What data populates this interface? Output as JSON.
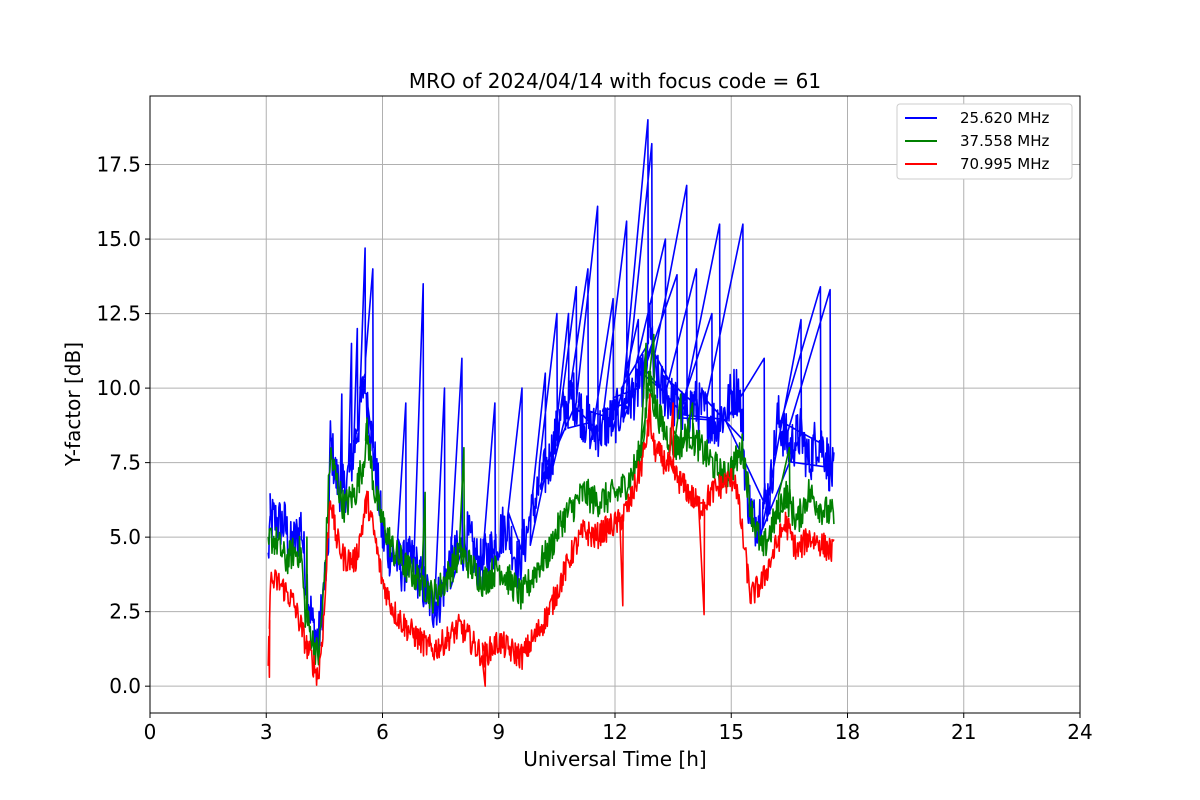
{
  "chart_data": {
    "type": "line",
    "title": "MRO of 2024/04/14 with focus code = 61",
    "xlabel": "Universal Time [h]",
    "ylabel": "Y-factor [dB]",
    "xlim": [
      0,
      24
    ],
    "ylim": [
      -0.9,
      19.8
    ],
    "xticks": [
      0,
      3,
      6,
      9,
      12,
      15,
      18,
      21,
      24
    ],
    "yticks": [
      0.0,
      2.5,
      5.0,
      7.5,
      10.0,
      12.5,
      15.0,
      17.5
    ],
    "xtick_labels": [
      "0",
      "3",
      "6",
      "9",
      "12",
      "15",
      "18",
      "21",
      "24"
    ],
    "ytick_labels": [
      "0.0",
      "2.5",
      "5.0",
      "7.5",
      "10.0",
      "12.5",
      "15.0",
      "17.5"
    ],
    "grid": true,
    "legend_position": "top-right",
    "series": [
      {
        "name": "25.620 MHz",
        "color": "#0000ff",
        "x": [
          3.05,
          3.1,
          3.3,
          3.5,
          3.6,
          3.8,
          3.9,
          4.0,
          4.2,
          4.35,
          4.5,
          4.6,
          4.65,
          4.8,
          5.0,
          5.2,
          5.4,
          5.55,
          5.7,
          5.9,
          6.0,
          6.2,
          6.5,
          6.8,
          7.0,
          7.3,
          7.5,
          7.7,
          8.0,
          8.2,
          8.5,
          8.8,
          9.0,
          9.2,
          9.5,
          9.8,
          10.0,
          10.3,
          10.6,
          10.9,
          11.2,
          11.5,
          11.8,
          12.0,
          12.3,
          12.6,
          12.8,
          12.9,
          13.0,
          13.2,
          13.5,
          13.8,
          14.0,
          14.3,
          14.6,
          14.9,
          15.0,
          15.2,
          15.4,
          15.6,
          15.8,
          16.0,
          16.2,
          16.5,
          16.8,
          17.0,
          17.2,
          17.4,
          17.5,
          17.65
        ],
        "y": [
          4.2,
          5.6,
          5.5,
          5.4,
          4.6,
          5.0,
          5.5,
          4.0,
          2.0,
          1.5,
          3.5,
          4.5,
          8.3,
          7.0,
          6.5,
          7.5,
          9.0,
          10.5,
          8.5,
          6.5,
          5.0,
          4.5,
          4.0,
          4.2,
          3.5,
          2.7,
          3.0,
          4.0,
          4.5,
          5.0,
          4.0,
          4.5,
          5.0,
          5.5,
          4.0,
          5.5,
          6.5,
          7.5,
          9.0,
          9.8,
          9.0,
          8.5,
          8.8,
          9.0,
          9.5,
          10.0,
          10.5,
          12.5,
          10.5,
          10.0,
          9.5,
          9.0,
          9.5,
          9.2,
          8.8,
          9.3,
          9.8,
          10.0,
          6.5,
          5.5,
          6.0,
          6.5,
          9.0,
          8.0,
          8.5,
          7.5,
          8.3,
          8.0,
          7.5,
          7.0
        ],
        "spikes": [
          [
            3.1,
            5.7
          ],
          [
            4.95,
            9.8
          ],
          [
            5.2,
            11.5
          ],
          [
            5.35,
            12.0
          ],
          [
            5.55,
            14.7
          ],
          [
            5.75,
            14.0
          ],
          [
            6.6,
            9.5
          ],
          [
            7.05,
            13.5
          ],
          [
            7.6,
            10.0
          ],
          [
            8.05,
            11.0
          ],
          [
            8.9,
            9.5
          ],
          [
            9.6,
            10.0
          ],
          [
            10.2,
            10.5
          ],
          [
            10.5,
            12.5
          ],
          [
            10.8,
            12.5
          ],
          [
            11.0,
            13.4
          ],
          [
            11.3,
            14.0
          ],
          [
            11.55,
            16.1
          ],
          [
            11.95,
            13.0
          ],
          [
            12.3,
            15.6
          ],
          [
            12.6,
            12.3
          ],
          [
            12.85,
            19.0
          ],
          [
            12.95,
            18.2
          ],
          [
            13.3,
            15.0
          ],
          [
            13.6,
            13.8
          ],
          [
            13.85,
            16.8
          ],
          [
            14.1,
            14.0
          ],
          [
            14.5,
            12.5
          ],
          [
            14.7,
            15.5
          ],
          [
            15.3,
            15.5
          ],
          [
            15.85,
            11.0
          ],
          [
            16.8,
            12.3
          ],
          [
            17.3,
            13.4
          ],
          [
            17.55,
            13.3
          ]
        ]
      },
      {
        "name": "37.558 MHz",
        "color": "#008000",
        "x": [
          3.05,
          3.1,
          3.3,
          3.5,
          3.7,
          3.9,
          4.0,
          4.2,
          4.35,
          4.5,
          4.65,
          4.8,
          5.0,
          5.3,
          5.5,
          5.6,
          5.8,
          6.0,
          6.3,
          6.6,
          7.0,
          7.3,
          7.6,
          8.0,
          8.3,
          8.6,
          9.0,
          9.3,
          9.6,
          10.0,
          10.3,
          10.6,
          10.9,
          11.2,
          11.5,
          11.8,
          12.1,
          12.4,
          12.7,
          12.9,
          13.0,
          13.3,
          13.6,
          13.9,
          14.2,
          14.5,
          14.8,
          15.1,
          15.3,
          15.5,
          15.8,
          16.1,
          16.4,
          16.7,
          17.0,
          17.3,
          17.5,
          17.65
        ],
        "y": [
          4.5,
          5.0,
          4.8,
          4.2,
          4.5,
          4.5,
          2.5,
          1.5,
          1.0,
          3.5,
          7.8,
          7.0,
          6.0,
          6.5,
          7.5,
          8.5,
          6.5,
          5.5,
          4.5,
          4.0,
          3.5,
          3.0,
          3.5,
          4.5,
          4.0,
          3.5,
          4.0,
          3.5,
          3.0,
          4.0,
          4.5,
          5.5,
          6.0,
          6.5,
          6.2,
          6.3,
          6.5,
          7.0,
          8.0,
          10.5,
          9.5,
          8.5,
          8.0,
          8.5,
          8.0,
          7.5,
          7.0,
          7.5,
          8.0,
          6.0,
          4.5,
          5.5,
          6.5,
          5.5,
          6.5,
          6.0,
          5.8,
          5.7
        ],
        "spikes": [
          [
            4.05,
            5.0
          ],
          [
            5.6,
            9.0
          ],
          [
            7.1,
            6.5
          ],
          [
            8.1,
            8.0
          ],
          [
            12.8,
            11.5
          ],
          [
            13.0,
            11.8
          ],
          [
            13.7,
            9.8
          ],
          [
            14.0,
            9.5
          ],
          [
            16.5,
            8.0
          ]
        ]
      },
      {
        "name": "70.995 MHz",
        "color": "#ff0000",
        "x": [
          3.05,
          3.1,
          3.3,
          3.5,
          3.7,
          3.9,
          4.0,
          4.2,
          4.35,
          4.5,
          4.65,
          4.8,
          5.0,
          5.3,
          5.5,
          5.6,
          5.8,
          6.0,
          6.3,
          6.6,
          7.0,
          7.3,
          7.6,
          8.0,
          8.3,
          8.6,
          9.0,
          9.3,
          9.6,
          10.0,
          10.3,
          10.6,
          10.9,
          11.2,
          11.5,
          11.8,
          12.1,
          12.4,
          12.7,
          12.9,
          13.0,
          13.3,
          13.6,
          13.9,
          14.2,
          14.5,
          14.8,
          15.1,
          15.3,
          15.5,
          15.8,
          16.1,
          16.4,
          16.7,
          17.0,
          17.3,
          17.5,
          17.65
        ],
        "y": [
          0.3,
          3.5,
          3.5,
          3.2,
          2.8,
          2.0,
          1.5,
          0.8,
          0.3,
          2.5,
          6.5,
          5.0,
          4.3,
          4.2,
          5.5,
          6.3,
          5.0,
          3.5,
          2.5,
          2.0,
          1.5,
          1.2,
          1.5,
          2.0,
          1.5,
          1.0,
          1.5,
          1.2,
          1.0,
          1.8,
          2.5,
          3.5,
          4.5,
          5.2,
          5.0,
          5.3,
          5.5,
          6.2,
          7.5,
          9.0,
          8.0,
          7.5,
          7.0,
          6.5,
          6.0,
          6.5,
          6.8,
          7.0,
          5.0,
          3.0,
          3.5,
          4.5,
          5.5,
          4.5,
          5.0,
          4.8,
          4.6,
          4.5
        ],
        "spikes": [
          [
            3.08,
            0.3
          ],
          [
            5.6,
            6.5
          ],
          [
            12.9,
            9.8
          ],
          [
            13.5,
            9.5
          ],
          [
            14.3,
            2.4
          ],
          [
            12.2,
            2.7
          ],
          [
            8.65,
            0.0
          ]
        ]
      }
    ]
  }
}
